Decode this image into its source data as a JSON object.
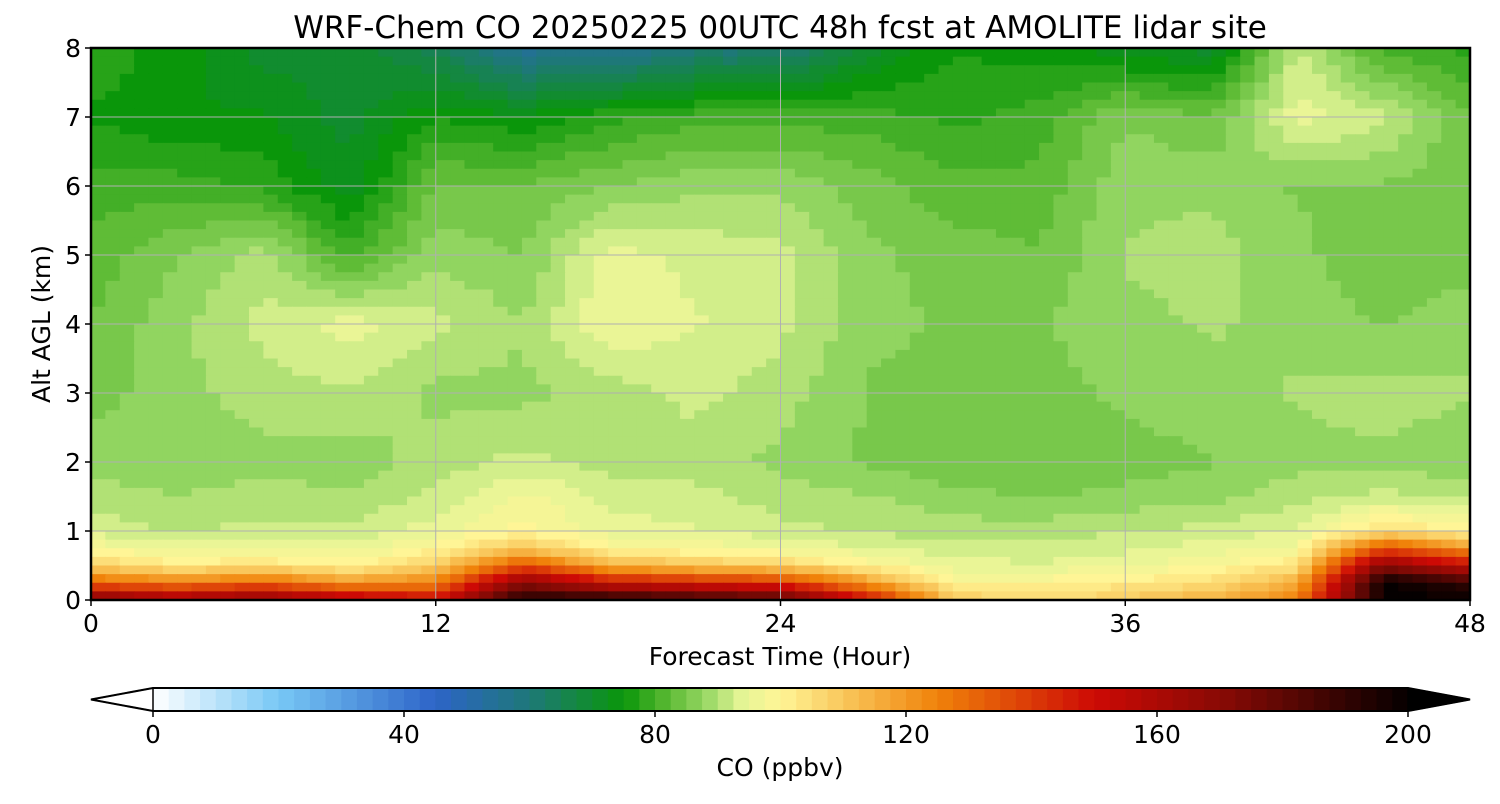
{
  "chart_data": {
    "type": "heatmap",
    "title": "WRF-Chem CO  20250225 00UTC 48h fcst at AMOLITE lidar site",
    "xlabel": "Forecast Time (Hour)",
    "ylabel": "Alt AGL (km)",
    "xlim": [
      0,
      48
    ],
    "ylim": [
      0,
      8
    ],
    "xticks": [
      0,
      12,
      24,
      36,
      48
    ],
    "yticks": [
      0,
      1,
      2,
      3,
      4,
      5,
      6,
      7,
      8
    ],
    "grid": true,
    "x": [
      0,
      3,
      6,
      9,
      12,
      15,
      18,
      21,
      24,
      27,
      30,
      33,
      36,
      39,
      42,
      45,
      48
    ],
    "y": [
      0,
      0.25,
      0.5,
      0.75,
      1,
      1.5,
      2,
      3,
      4,
      5,
      6,
      7,
      8
    ],
    "z": [
      [
        175,
        165,
        170,
        160,
        150,
        195,
        195,
        190,
        185,
        150,
        110,
        105,
        110,
        115,
        125,
        200,
        200
      ],
      [
        130,
        125,
        130,
        120,
        125,
        170,
        150,
        145,
        140,
        120,
        100,
        100,
        102,
        105,
        115,
        200,
        190
      ],
      [
        108,
        102,
        104,
        100,
        108,
        135,
        115,
        110,
        108,
        100,
        95,
        94,
        96,
        98,
        104,
        170,
        150
      ],
      [
        98,
        95,
        96,
        95,
        100,
        110,
        100,
        98,
        96,
        94,
        92,
        92,
        93,
        95,
        97,
        135,
        120
      ],
      [
        93,
        91,
        92,
        92,
        95,
        100,
        95,
        94,
        92,
        91,
        90,
        90,
        91,
        92,
        94,
        105,
        100
      ],
      [
        90,
        89,
        90,
        89,
        92,
        97,
        93,
        92,
        90,
        89,
        87,
        86,
        87,
        88,
        90,
        92,
        90
      ],
      [
        88,
        86,
        88,
        87,
        90,
        92,
        90,
        90,
        88,
        86,
        84,
        84,
        85,
        86,
        88,
        88,
        87
      ],
      [
        85,
        88,
        90,
        91,
        88,
        88,
        90,
        92,
        90,
        86,
        85,
        85,
        87,
        88,
        89,
        90,
        89
      ],
      [
        84,
        88,
        92,
        95,
        92,
        89,
        96,
        94,
        92,
        87,
        86,
        86,
        88,
        89,
        88,
        86,
        88
      ],
      [
        82,
        86,
        90,
        80,
        88,
        86,
        95,
        93,
        92,
        87,
        85,
        84,
        89,
        90,
        87,
        84,
        85
      ],
      [
        80,
        80,
        78,
        72,
        84,
        84,
        86,
        88,
        88,
        85,
        82,
        82,
        88,
        88,
        86,
        86,
        84
      ],
      [
        76,
        74,
        74,
        70,
        76,
        74,
        78,
        80,
        80,
        80,
        78,
        80,
        86,
        84,
        95,
        92,
        84
      ],
      [
        78,
        75,
        70,
        70,
        65,
        55,
        55,
        60,
        60,
        70,
        76,
        75,
        72,
        70,
        92,
        80,
        78
      ]
    ],
    "colorbar": {
      "label": "CO  (ppbv)",
      "min": 0,
      "max": 200,
      "ticks": [
        0,
        40,
        80,
        120,
        160,
        200
      ],
      "extend": "both"
    }
  }
}
